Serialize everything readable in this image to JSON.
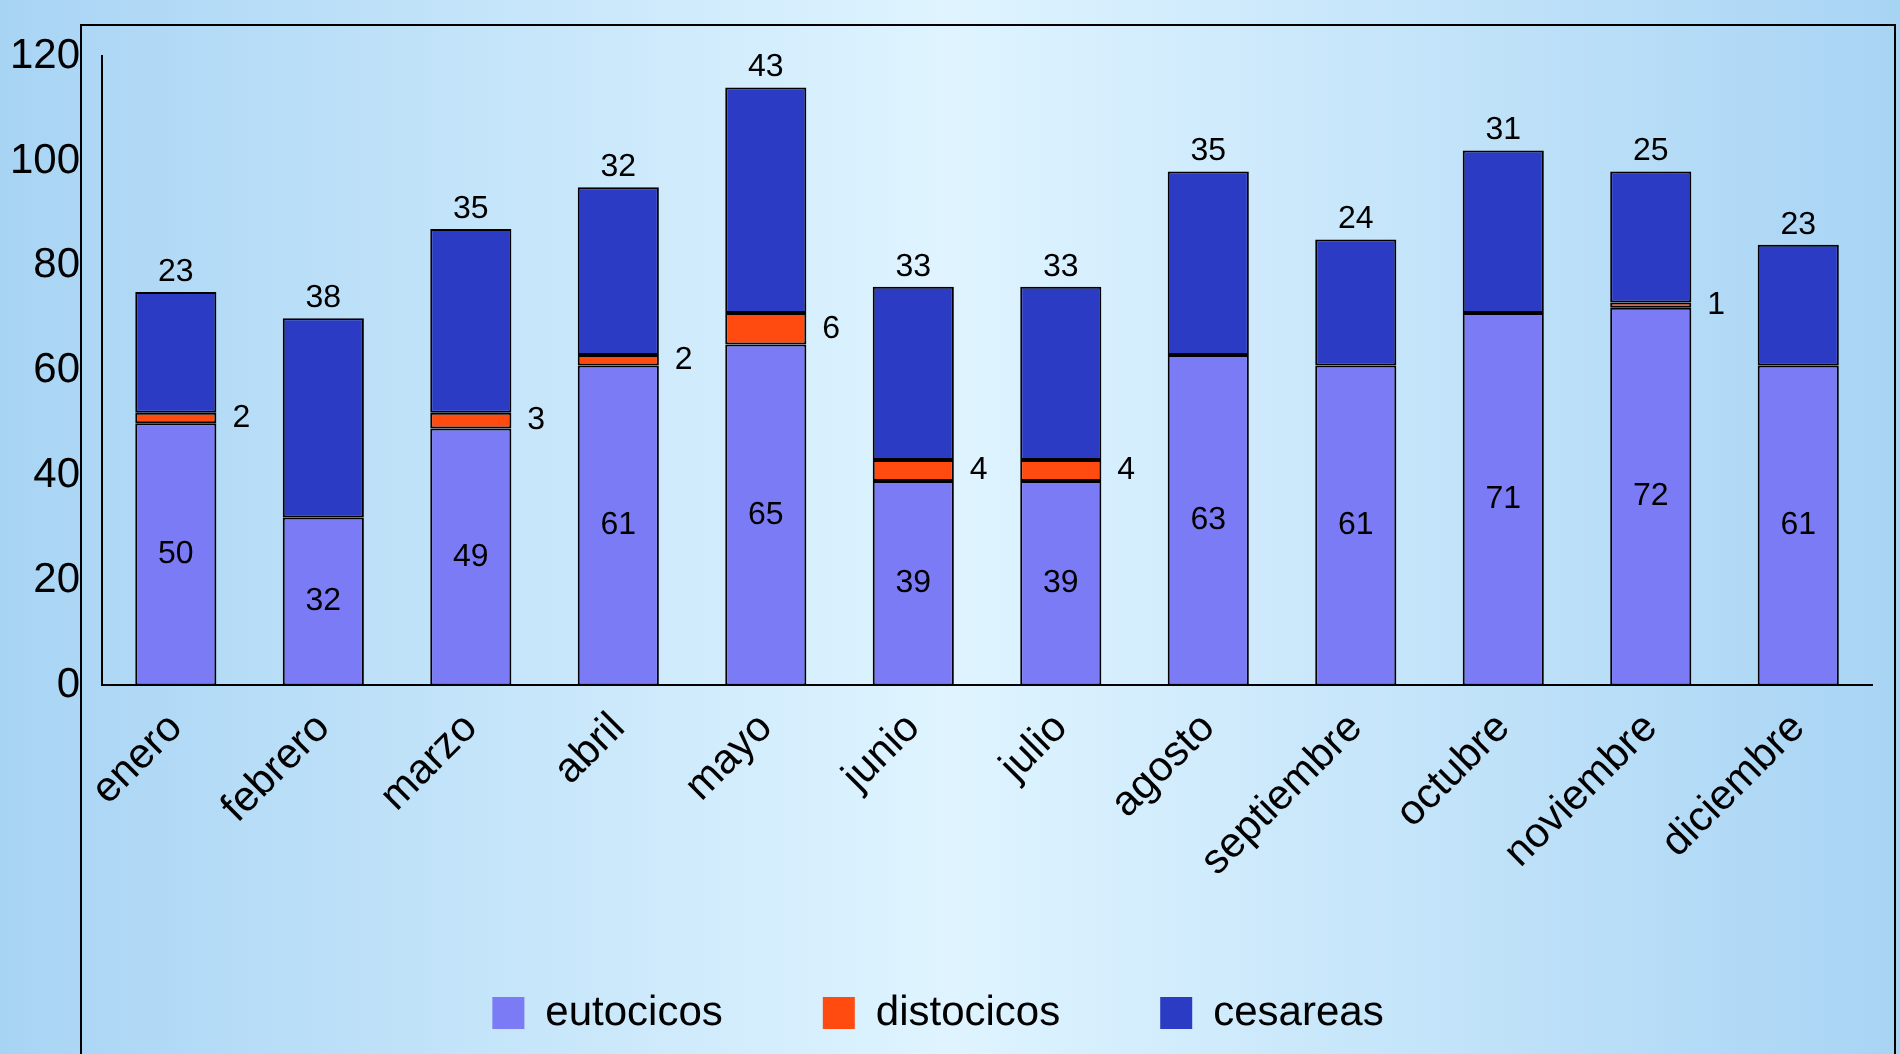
{
  "chart_data": {
    "type": "bar",
    "stacked": true,
    "categories": [
      "enero",
      "febrero",
      "marzo",
      "abril",
      "mayo",
      "junio",
      "julio",
      "agosto",
      "septiembre",
      "octubre",
      "noviembre",
      "diciembre"
    ],
    "series": [
      {
        "name": "eutocicos",
        "color": "#7b7bf5",
        "values": [
          50,
          32,
          49,
          61,
          65,
          39,
          39,
          63,
          61,
          71,
          72,
          61
        ]
      },
      {
        "name": "distocicos",
        "color": "#ff4a10",
        "values": [
          2,
          null,
          3,
          2,
          6,
          4,
          4,
          null,
          null,
          null,
          1,
          null
        ]
      },
      {
        "name": "cesareas",
        "color": "#2b3bc4",
        "values": [
          23,
          38,
          35,
          32,
          43,
          33,
          33,
          35,
          24,
          31,
          25,
          23
        ]
      }
    ],
    "ylim": [
      0,
      120
    ],
    "yticks": [
      0,
      20,
      40,
      60,
      80,
      100,
      120
    ],
    "grid": false,
    "legend": "bottom",
    "data_labels": true
  }
}
